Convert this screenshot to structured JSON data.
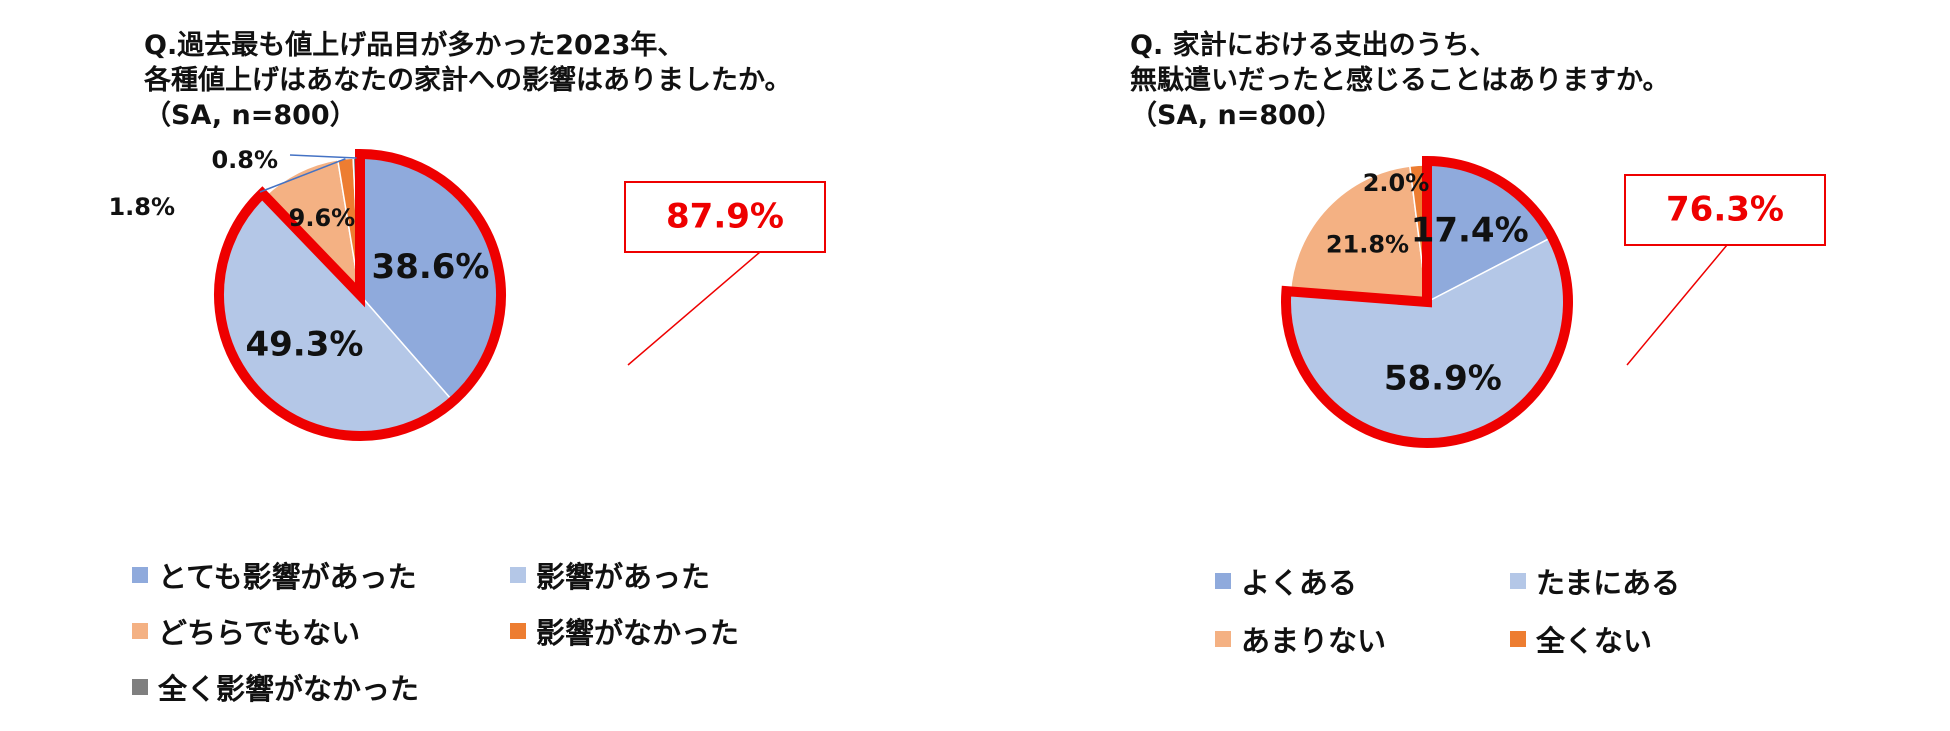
{
  "colors": {
    "blue": "#8FAADC",
    "light_blue": "#B4C7E7",
    "peach": "#F4B183",
    "orange": "#ED7D31",
    "gray": "#7F7F7F",
    "highlight": "#EE0000",
    "leader": "#4472C4"
  },
  "chart_data": [
    {
      "type": "pie",
      "title_lines": [
        "Q.過去最も値上げ品目が多かった2023年、",
        "各種値上げはあなたの家計への影響はありましたか。",
        "（SA, n=800）"
      ],
      "slices": [
        {
          "label": "とても影響があった",
          "value": 38.6,
          "display": "38.6%",
          "color": "#8FAADC"
        },
        {
          "label": "影響があった",
          "value": 49.3,
          "display": "49.3%",
          "color": "#B4C7E7"
        },
        {
          "label": "どちらでもない",
          "value": 9.6,
          "display": "9.6%",
          "color": "#F4B183"
        },
        {
          "label": "影響がなかった",
          "value": 1.8,
          "display": "1.8%",
          "color": "#ED7D31"
        },
        {
          "label": "全く影響がなかった",
          "value": 0.8,
          "display": "0.8%",
          "color": "#7F7F7F"
        }
      ],
      "highlight": {
        "value": "87.9%",
        "slices": [
          0,
          1
        ]
      },
      "legend_placement": "bottom"
    },
    {
      "type": "pie",
      "title_lines": [
        "Q. 家計における支出のうち、",
        "無駄遣いだったと感じることはありますか。",
        "（SA, n=800）"
      ],
      "slices": [
        {
          "label": "よくある",
          "value": 17.4,
          "display": "17.4%",
          "color": "#8FAADC"
        },
        {
          "label": "たまにある",
          "value": 58.9,
          "display": "58.9%",
          "color": "#B4C7E7"
        },
        {
          "label": "あまりない",
          "value": 21.8,
          "display": "21.8%",
          "color": "#F4B183"
        },
        {
          "label": "全くない",
          "value": 2.0,
          "display": "2.0%",
          "color": "#ED7D31"
        }
      ],
      "highlight": {
        "value": "76.3%",
        "slices": [
          0,
          1
        ]
      },
      "legend_placement": "bottom"
    }
  ]
}
